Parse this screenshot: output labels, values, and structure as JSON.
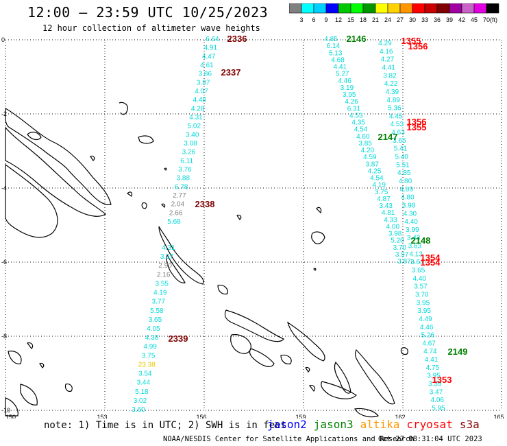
{
  "title": "12:00 – 23:59 UTC 10/25/2023",
  "subtitle": "12 hour collection of altimeter wave heights",
  "colorbar": {
    "unit": "(ft)",
    "ticks": [
      "3",
      "6",
      "9",
      "12",
      "15",
      "18",
      "21",
      "24",
      "27",
      "30",
      "33",
      "36",
      "39",
      "42",
      "45",
      "70"
    ],
    "colors": [
      "#808080",
      "#00ffff",
      "#00d0ff",
      "#0000ff",
      "#00c800",
      "#00ff00",
      "#009600",
      "#ffff00",
      "#ffd200",
      "#ff9600",
      "#ff0000",
      "#c80000",
      "#800000",
      "#a000a0",
      "#c864c8",
      "#e000e0",
      "#000000"
    ]
  },
  "axes": {
    "lon_ticks": [
      "150",
      "153",
      "156",
      "159",
      "162",
      "165"
    ],
    "lat_ticks": [
      "0",
      "-2",
      "-4",
      "-6",
      "-8",
      "-10"
    ]
  },
  "orbit_labels": [
    {
      "text": "2336",
      "color": "#800000"
    },
    {
      "text": "2337",
      "color": "#800000"
    },
    {
      "text": "2338",
      "color": "#800000"
    },
    {
      "text": "2339",
      "color": "#800000"
    },
    {
      "text": "2146",
      "color": "#008000"
    },
    {
      "text": "2147",
      "color": "#008000"
    },
    {
      "text": "2148",
      "color": "#008000"
    },
    {
      "text": "2149",
      "color": "#008000"
    },
    {
      "text": "1355",
      "color": "#ff0000"
    },
    {
      "text": "1356",
      "color": "#ff0000"
    },
    {
      "text": "1356",
      "color": "#ff0000"
    },
    {
      "text": "1355",
      "color": "#ff0000"
    },
    {
      "text": "1354",
      "color": "#ff0000"
    },
    {
      "text": "1354",
      "color": "#ff0000"
    },
    {
      "text": "1353",
      "color": "#ff0000"
    }
  ],
  "track_a": [
    "6.64",
    "4.91",
    "4.47",
    "4.61",
    "3.86",
    "3.87",
    "4.07",
    "4.48",
    "4.28",
    "4.31",
    "5.02",
    "3.40",
    "3.08",
    "3.26",
    "6.11",
    "3.76",
    "3.88",
    "6.78",
    "2.77",
    "2.04",
    "2.66",
    "5.68"
  ],
  "track_b": [
    "4.31",
    "3.37",
    "2.90",
    "2.16",
    "3.55",
    "4.19",
    "3.77",
    "5.58",
    "3.65",
    "4.05",
    "4.38",
    "4.99",
    "3.75",
    "23.38",
    "3.54",
    "3.44",
    "5.18",
    "3.02",
    "3.60"
  ],
  "track_c": [
    "4.85",
    "6.14",
    "5.13",
    "4.68",
    "4.41",
    "5.27",
    "4.46",
    "3.19",
    "3.95",
    "4.26",
    "6.31",
    "4.53",
    "4.35",
    "4.54",
    "4.60",
    "3.85",
    "4.20",
    "4.59",
    "3.87",
    "4.25",
    "4.54",
    "4.19",
    "3.75",
    "4.87",
    "3.43",
    "4.81",
    "4.33",
    "4.00",
    "3.98",
    "5.20",
    "3.70",
    "3.97",
    "3.87"
  ],
  "track_d": [
    "4.29",
    "4.16",
    "4.27",
    "4.41",
    "3.82",
    "4.22",
    "4.39",
    "4.89",
    "5.36",
    "4.45",
    "4.53",
    "4.63",
    "3.65",
    "5.41",
    "5.40",
    "5.51",
    "4.85",
    "4.80",
    "4.89",
    "4.80",
    "3.98",
    "4.30",
    "4.40",
    "3.99",
    "3.43",
    "3.63",
    "4.13",
    "3.64",
    "3.65",
    "4.40",
    "3.57",
    "3.70",
    "3.95",
    "3.95",
    "4.49",
    "4.46",
    "5.26",
    "4.67",
    "4.74",
    "4.41",
    "4.75",
    "3.95",
    "3.39",
    "3.47",
    "4.06",
    "5.95"
  ],
  "note": "note: 1) Time is in UTC; 2) SWH is in feet",
  "legend": [
    {
      "label": "jason2",
      "color": "#0000ff"
    },
    {
      "label": "jason3",
      "color": "#008000"
    },
    {
      "label": "altika",
      "color": "#ff9600"
    },
    {
      "label": "cryosat",
      "color": "#ff0000"
    },
    {
      "label": "s3a",
      "color": "#800000"
    }
  ],
  "footer": {
    "org": "NOAA/NESDIS Center for Satellite Applications and Research",
    "timestamp": "Oct 27 08:31:04 UTC 2023"
  }
}
